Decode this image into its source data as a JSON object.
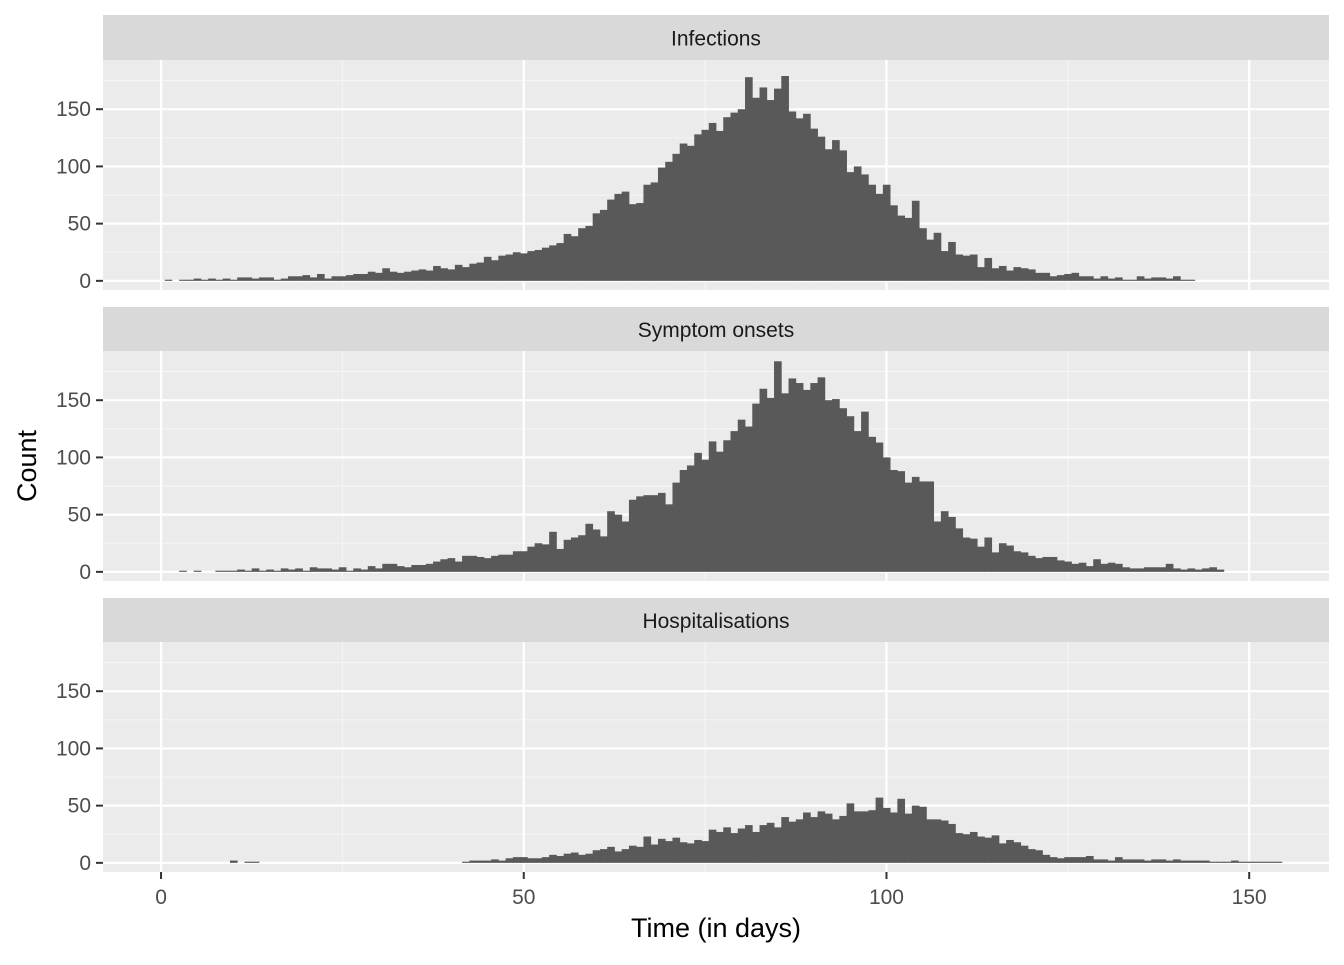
{
  "chart_data": {
    "type": "bar",
    "xlabel": "Time (in days)",
    "ylabel": "Count",
    "xlim": [
      -8,
      161
    ],
    "ylim": [
      -8,
      193
    ],
    "x_ticks": [
      0,
      50,
      100,
      150
    ],
    "y_ticks": [
      0,
      50,
      100,
      150
    ],
    "grid": true,
    "bar_color": "#595959",
    "panel_background": "#ebebeb",
    "strip_background": "#d9d9d9",
    "panels": [
      {
        "title": "Infections",
        "x_start": 0,
        "values": [
          0,
          1,
          0,
          1,
          1,
          2,
          1,
          2,
          1,
          2,
          1,
          3,
          3,
          2,
          3,
          3,
          1,
          2,
          4,
          4,
          5,
          3,
          6,
          2,
          4,
          4,
          5,
          6,
          6,
          8,
          7,
          11,
          8,
          7,
          8,
          9,
          10,
          9,
          13,
          11,
          10,
          14,
          12,
          15,
          16,
          21,
          18,
          22,
          23,
          25,
          24,
          26,
          27,
          29,
          31,
          33,
          41,
          39,
          46,
          48,
          59,
          62,
          71,
          76,
          78,
          67,
          68,
          84,
          86,
          99,
          104,
          111,
          120,
          118,
          128,
          132,
          138,
          131,
          143,
          147,
          150,
          178,
          160,
          169,
          158,
          168,
          179,
          148,
          142,
          146,
          133,
          126,
          115,
          123,
          114,
          95,
          100,
          93,
          84,
          76,
          84,
          66,
          57,
          55,
          70,
          46,
          36,
          42,
          26,
          34,
          23,
          22,
          23,
          12,
          20,
          11,
          13,
          9,
          12,
          11,
          10,
          7,
          7,
          4,
          5,
          6,
          7,
          4,
          4,
          2,
          4,
          2,
          3,
          1,
          1,
          4,
          2,
          3,
          3,
          2,
          4,
          1,
          1
        ]
      },
      {
        "title": "Symptom onsets",
        "x_start": 0,
        "values": [
          0,
          0,
          0,
          1,
          0,
          1,
          0,
          0,
          1,
          1,
          1,
          2,
          1,
          3,
          1,
          2,
          1,
          3,
          2,
          3,
          1,
          4,
          3,
          3,
          2,
          4,
          1,
          3,
          2,
          5,
          3,
          7,
          7,
          5,
          4,
          6,
          6,
          7,
          9,
          11,
          12,
          9,
          14,
          14,
          13,
          12,
          14,
          15,
          15,
          18,
          18,
          22,
          25,
          24,
          35,
          20,
          28,
          30,
          32,
          42,
          37,
          31,
          53,
          50,
          44,
          63,
          66,
          67,
          67,
          69,
          59,
          78,
          89,
          93,
          104,
          98,
          114,
          105,
          115,
          123,
          133,
          127,
          147,
          160,
          152,
          184,
          156,
          169,
          165,
          159,
          165,
          170,
          150,
          151,
          143,
          136,
          123,
          140,
          118,
          113,
          100,
          89,
          88,
          78,
          83,
          79,
          79,
          44,
          53,
          48,
          38,
          30,
          29,
          22,
          30,
          17,
          25,
          23,
          18,
          17,
          14,
          12,
          13,
          13,
          10,
          9,
          7,
          8,
          5,
          11,
          7,
          8,
          7,
          4,
          3,
          3,
          4,
          4,
          4,
          7,
          3,
          2,
          3,
          2,
          3,
          4,
          2
        ]
      },
      {
        "title": "Hospitalisations",
        "x_start": 0,
        "values": [
          0,
          0,
          0,
          0,
          0,
          0,
          0,
          0,
          0,
          0,
          2,
          0,
          1,
          1,
          0,
          0,
          0,
          0,
          0,
          0,
          0,
          0,
          0,
          0,
          0,
          0,
          0,
          0,
          0,
          0,
          0,
          0,
          0,
          0,
          0,
          0,
          0,
          0,
          0,
          0,
          0,
          0,
          1,
          2,
          2,
          2,
          3,
          2,
          4,
          5,
          5,
          4,
          4,
          5,
          7,
          6,
          8,
          9,
          7,
          8,
          11,
          12,
          14,
          10,
          12,
          15,
          14,
          23,
          16,
          21,
          19,
          22,
          18,
          17,
          20,
          19,
          29,
          27,
          31,
          26,
          30,
          33,
          27,
          33,
          35,
          31,
          40,
          36,
          38,
          44,
          40,
          45,
          43,
          38,
          41,
          52,
          45,
          45,
          46,
          57,
          48,
          44,
          56,
          43,
          50,
          49,
          38,
          38,
          37,
          34,
          26,
          25,
          27,
          23,
          22,
          24,
          17,
          20,
          18,
          15,
          12,
          11,
          7,
          5,
          4,
          5,
          5,
          5,
          6,
          3,
          3,
          2,
          5,
          3,
          3,
          3,
          2,
          3,
          3,
          2,
          3,
          2,
          2,
          2,
          2,
          1,
          1,
          1,
          2,
          1,
          1,
          1,
          1,
          1,
          1
        ]
      }
    ]
  }
}
